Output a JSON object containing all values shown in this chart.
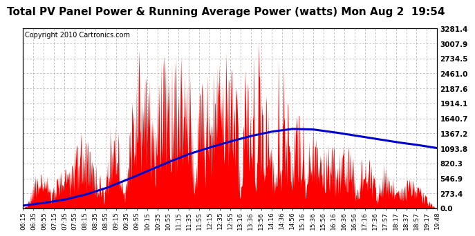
{
  "title": "Total PV Panel Power & Running Average Power (watts) Mon Aug 2  19:54",
  "copyright": "Copyright 2010 Cartronics.com",
  "bg_color": "#ffffff",
  "plot_bg_color": "#ffffff",
  "grid_color": "#aaaaaa",
  "bar_color": "#ff0000",
  "line_color": "#0000cc",
  "yticks": [
    0.0,
    273.4,
    546.9,
    820.3,
    1093.8,
    1367.2,
    1640.7,
    1914.1,
    2187.6,
    2461.0,
    2734.5,
    3007.9,
    3281.4
  ],
  "ymax": 3281.4,
  "ymin": 0.0,
  "xtick_labels": [
    "06:15",
    "06:35",
    "06:55",
    "07:15",
    "07:35",
    "07:55",
    "08:15",
    "08:35",
    "08:55",
    "09:15",
    "09:35",
    "09:55",
    "10:15",
    "10:35",
    "10:55",
    "11:15",
    "11:35",
    "11:55",
    "12:15",
    "12:35",
    "12:55",
    "13:16",
    "13:36",
    "13:56",
    "14:16",
    "14:36",
    "14:56",
    "15:16",
    "15:36",
    "15:56",
    "16:16",
    "16:36",
    "16:56",
    "17:16",
    "17:36",
    "17:57",
    "18:17",
    "18:37",
    "18:57",
    "19:17",
    "19:48"
  ],
  "title_fontsize": 11,
  "copyright_fontsize": 7,
  "tick_fontsize": 6.5,
  "ytick_fontsize": 7.5,
  "running_avg_x": [
    0.0,
    0.05,
    0.1,
    0.15,
    0.2,
    0.25,
    0.3,
    0.35,
    0.4,
    0.45,
    0.5,
    0.55,
    0.6,
    0.65,
    0.7,
    0.75,
    0.8,
    0.85,
    0.9,
    0.95,
    1.0
  ],
  "running_avg_y": [
    50,
    100,
    160,
    250,
    370,
    520,
    680,
    840,
    990,
    1110,
    1220,
    1320,
    1400,
    1450,
    1440,
    1390,
    1330,
    1270,
    1210,
    1160,
    1100
  ]
}
